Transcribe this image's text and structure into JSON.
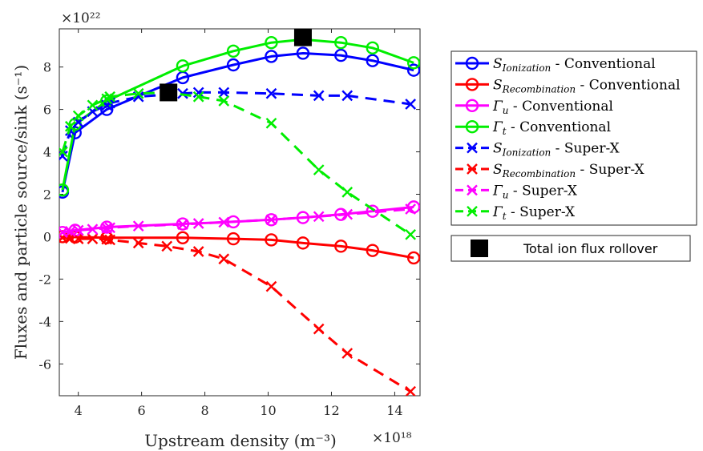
{
  "chart_data": {
    "type": "line",
    "xlabel": "Upstream density (m⁻³)",
    "ylabel": "Fluxes and particle source/sink (s⁻¹)",
    "x_multiplier": "×10¹⁸",
    "y_multiplier": "×10²²",
    "xlim": [
      3.4,
      14.8
    ],
    "ylim": [
      -7.5,
      9.8
    ],
    "x_ticks": [
      4,
      6,
      8,
      10,
      12,
      14
    ],
    "y_ticks": [
      -6,
      -4,
      -2,
      0,
      2,
      4,
      6,
      8
    ],
    "grid": false,
    "legend_position": "outside-right",
    "series": [
      {
        "name": "S_Ionization - Conventional",
        "label_main": "S",
        "label_sub": "Ionization",
        "label_suffix": " - Conventional",
        "color": "#0000ff",
        "marker": "circle",
        "linestyle": "solid",
        "x": [
          3.5,
          3.9,
          4.9,
          7.3,
          8.9,
          10.1,
          11.1,
          12.3,
          13.3,
          14.6
        ],
        "y": [
          2.1,
          4.9,
          6.0,
          7.5,
          8.1,
          8.5,
          8.65,
          8.55,
          8.3,
          7.85
        ]
      },
      {
        "name": "S_Recombination - Conventional",
        "label_main": "S",
        "label_sub": "Recombination",
        "label_suffix": " - Conventional",
        "color": "#ff0000",
        "marker": "circle",
        "linestyle": "solid",
        "x": [
          3.5,
          3.9,
          4.9,
          7.3,
          8.9,
          10.1,
          11.1,
          12.3,
          13.3,
          14.6
        ],
        "y": [
          0.0,
          -0.02,
          -0.05,
          -0.05,
          -0.1,
          -0.15,
          -0.3,
          -0.45,
          -0.65,
          -1.0
        ]
      },
      {
        "name": "Γu - Conventional",
        "label_main": "Γ",
        "label_sub": "u",
        "label_suffix": " - Conventional",
        "color": "#ff00ff",
        "marker": "circle",
        "linestyle": "solid",
        "x": [
          3.5,
          3.9,
          4.9,
          7.3,
          8.9,
          10.1,
          11.1,
          12.3,
          13.3,
          14.6
        ],
        "y": [
          0.2,
          0.3,
          0.45,
          0.6,
          0.7,
          0.8,
          0.9,
          1.05,
          1.2,
          1.4
        ]
      },
      {
        "name": "Γt - Conventional",
        "label_main": "Γ",
        "label_sub": "t",
        "label_suffix": " - Conventional",
        "color": "#00ee00",
        "marker": "circle",
        "linestyle": "solid",
        "x": [
          3.5,
          3.9,
          4.9,
          7.3,
          8.9,
          10.1,
          11.1,
          12.3,
          13.3,
          14.6
        ],
        "y": [
          2.2,
          5.3,
          6.4,
          8.05,
          8.75,
          9.15,
          9.3,
          9.15,
          8.9,
          8.2
        ]
      },
      {
        "name": "S_Ionization - Super-X",
        "label_main": "S",
        "label_sub": "Ionization",
        "label_suffix": " - Super-X",
        "color": "#0000ff",
        "marker": "x",
        "linestyle": "dashed",
        "x": [
          3.5,
          3.75,
          4.0,
          4.45,
          4.9,
          5.0,
          5.9,
          7.3,
          7.8,
          8.6,
          10.1,
          11.6,
          12.5,
          14.5
        ],
        "y": [
          3.8,
          5.0,
          5.4,
          5.9,
          6.2,
          6.3,
          6.6,
          6.75,
          6.8,
          6.8,
          6.75,
          6.65,
          6.65,
          6.25
        ]
      },
      {
        "name": "S_Recombination - Super-X",
        "label_main": "S",
        "label_sub": "Recombination",
        "label_suffix": " - Super-X",
        "color": "#ff0000",
        "marker": "x",
        "linestyle": "dashed",
        "x": [
          3.5,
          3.75,
          4.0,
          4.45,
          4.9,
          5.0,
          5.9,
          6.8,
          7.8,
          8.6,
          10.1,
          11.6,
          12.5,
          14.5
        ],
        "y": [
          -0.05,
          -0.08,
          -0.1,
          -0.1,
          -0.12,
          -0.15,
          -0.3,
          -0.45,
          -0.7,
          -1.05,
          -2.35,
          -4.35,
          -5.5,
          -7.3
        ]
      },
      {
        "name": "Γu - Super-X",
        "label_main": "Γ",
        "label_sub": "u",
        "label_suffix": " - Super-X",
        "color": "#ff00ff",
        "marker": "x",
        "linestyle": "dashed",
        "x": [
          3.5,
          3.75,
          4.0,
          4.45,
          4.9,
          5.0,
          5.9,
          7.3,
          7.8,
          8.6,
          10.1,
          11.6,
          12.5,
          14.5
        ],
        "y": [
          0.2,
          0.25,
          0.3,
          0.35,
          0.4,
          0.42,
          0.5,
          0.58,
          0.62,
          0.68,
          0.8,
          0.95,
          1.05,
          1.3
        ]
      },
      {
        "name": "Γt - Super-X",
        "label_main": "Γ",
        "label_sub": "t",
        "label_suffix": " - Super-X",
        "color": "#00ee00",
        "marker": "x",
        "linestyle": "dashed",
        "x": [
          3.5,
          3.75,
          4.0,
          4.45,
          4.9,
          5.0,
          5.9,
          6.8,
          7.8,
          8.6,
          10.1,
          11.6,
          12.5,
          14.5
        ],
        "y": [
          4.0,
          5.2,
          5.7,
          6.2,
          6.5,
          6.6,
          6.75,
          6.8,
          6.6,
          6.4,
          5.35,
          3.15,
          2.1,
          0.1
        ]
      }
    ],
    "rollover": {
      "name": "Total ion flux rollover",
      "color": "#000000",
      "marker": "square",
      "points": [
        {
          "x": 6.85,
          "y": 6.8
        },
        {
          "x": 11.1,
          "y": 9.4
        }
      ]
    }
  }
}
